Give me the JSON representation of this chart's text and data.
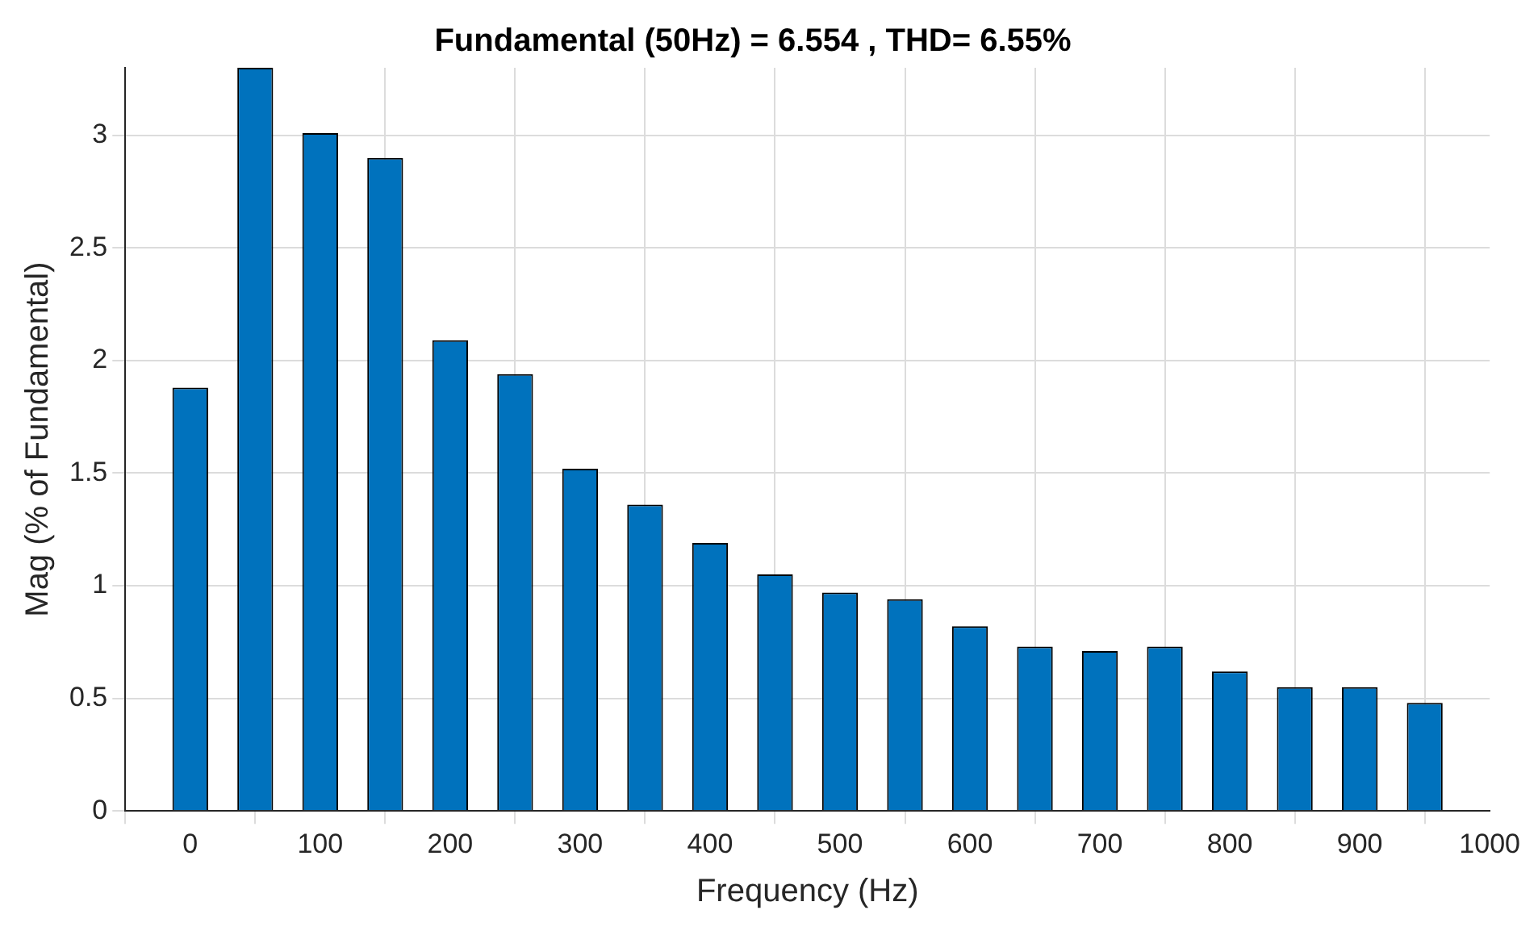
{
  "chart_data": {
    "type": "bar",
    "title": "Fundamental (50Hz) = 6.554 , THD= 6.55%",
    "xlabel": "Frequency (Hz)",
    "ylabel": "Mag (% of Fundamental)",
    "x": [
      0,
      50,
      100,
      150,
      200,
      250,
      300,
      350,
      400,
      450,
      500,
      550,
      600,
      650,
      700,
      750,
      800,
      850,
      900,
      950
    ],
    "values": [
      1.88,
      3.3,
      3.01,
      2.9,
      2.09,
      1.94,
      1.52,
      1.36,
      1.19,
      1.05,
      0.97,
      0.94,
      0.82,
      0.73,
      0.71,
      0.73,
      0.62,
      0.55,
      0.55,
      0.48
    ],
    "color": "#0072bd",
    "xlim": [
      -50,
      1000
    ],
    "xticks": [
      0,
      100,
      200,
      300,
      400,
      500,
      600,
      700,
      800,
      900,
      1000
    ],
    "ylim": [
      0,
      3.3
    ],
    "yticks": [
      0,
      0.5,
      1,
      1.5,
      2,
      2.5,
      3
    ],
    "grid": true,
    "legend": false
  }
}
